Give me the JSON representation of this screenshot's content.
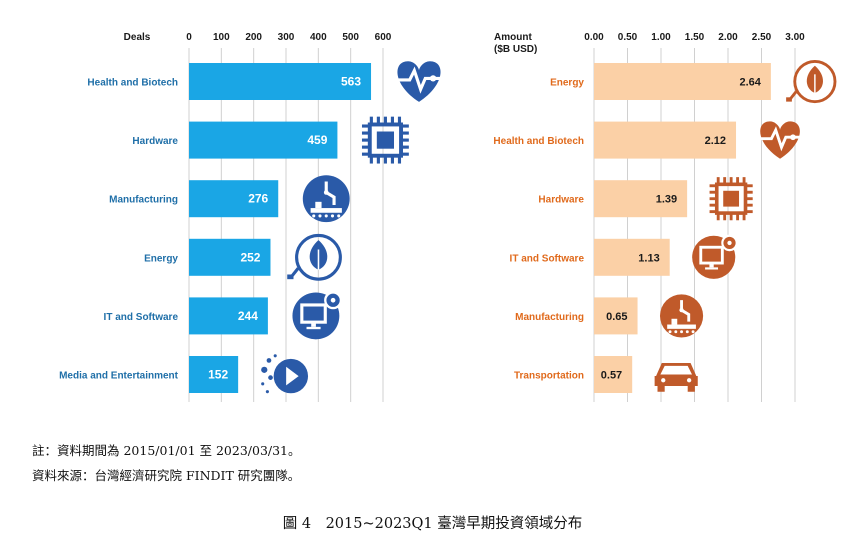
{
  "colors": {
    "left_bar": "#1aa6e5",
    "left_icon": "#2a5aa8",
    "right_bar": "#fbd0a6",
    "right_icon": "#c05a2a",
    "gridline": "#d0d0d0"
  },
  "chart_data": [
    {
      "type": "bar",
      "orientation": "horizontal",
      "xlabel": "Deals",
      "xlim": [
        0,
        600
      ],
      "ticks": [
        "0",
        "100",
        "200",
        "300",
        "400",
        "500",
        "600"
      ],
      "grid": true,
      "categories": [
        "Health and Biotech",
        "Hardware",
        "Manufacturing",
        "Energy",
        "IT and Software",
        "Media and Entertainment"
      ],
      "values": [
        563,
        459,
        276,
        252,
        244,
        152
      ],
      "value_labels": [
        "563",
        "459",
        "276",
        "252",
        "244",
        "152"
      ],
      "icons": [
        "heartbeat-icon",
        "chip-icon",
        "robot-arm-icon",
        "leaf-plug-icon",
        "monitor-gear-icon",
        "play-icon"
      ]
    },
    {
      "type": "bar",
      "orientation": "horizontal",
      "xlabel": "Amount",
      "xlabel_unit": "($B USD)",
      "xlim": [
        0,
        3.0
      ],
      "ticks": [
        "0.00",
        "0.50",
        "1.00",
        "1.50",
        "2.00",
        "2.50",
        "3.00"
      ],
      "grid": true,
      "categories": [
        "Energy",
        "Health and Biotech",
        "Hardware",
        "IT and Software",
        "Manufacturing",
        "Transportation"
      ],
      "values": [
        2.64,
        2.12,
        1.39,
        1.13,
        0.65,
        0.57
      ],
      "value_labels": [
        "2.64",
        "2.12",
        "1.39",
        "1.13",
        "0.65",
        "0.57"
      ],
      "icons": [
        "leaf-plug-icon",
        "heartbeat-icon",
        "chip-icon",
        "monitor-gear-icon",
        "robot-arm-icon",
        "car-icon"
      ]
    }
  ],
  "notes": {
    "note1": "註：資料期間為 2015/01/01 至 2023/03/31。",
    "note2": "資料來源：台灣經濟研究院 FINDIT 研究團隊。"
  },
  "caption": "圖 4　2015~2023Q1 臺灣早期投資領域分布"
}
